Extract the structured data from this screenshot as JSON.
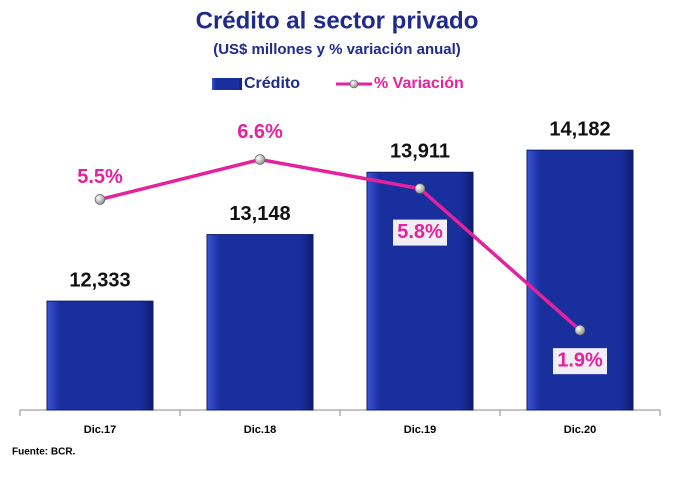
{
  "chart_data": {
    "type": "bar",
    "title": "Crédito al sector privado",
    "subtitle": "(US$ millones y % variación anual)",
    "source": "Fuente: BCR.",
    "categories": [
      "Dic.17",
      "Dic.18",
      "Dic.19",
      "Dic.20"
    ],
    "series": [
      {
        "name": "Crédito",
        "type": "bar",
        "color": "#1a2f9e",
        "values": [
          12333,
          13148,
          13911,
          14182
        ],
        "value_labels": [
          "12,333",
          "13,148",
          "13,911",
          "14,182"
        ]
      },
      {
        "name": "% Variación",
        "type": "line",
        "axis": "y2",
        "color": "#e6219d",
        "values": [
          5.5,
          6.6,
          5.8,
          1.9
        ],
        "value_labels": [
          "5.5%",
          "6.6%",
          "5.8%",
          "1.9%"
        ]
      }
    ],
    "ylim": [
      11000,
      14600
    ],
    "y2lim": [
      -0.3,
      7.8
    ]
  }
}
